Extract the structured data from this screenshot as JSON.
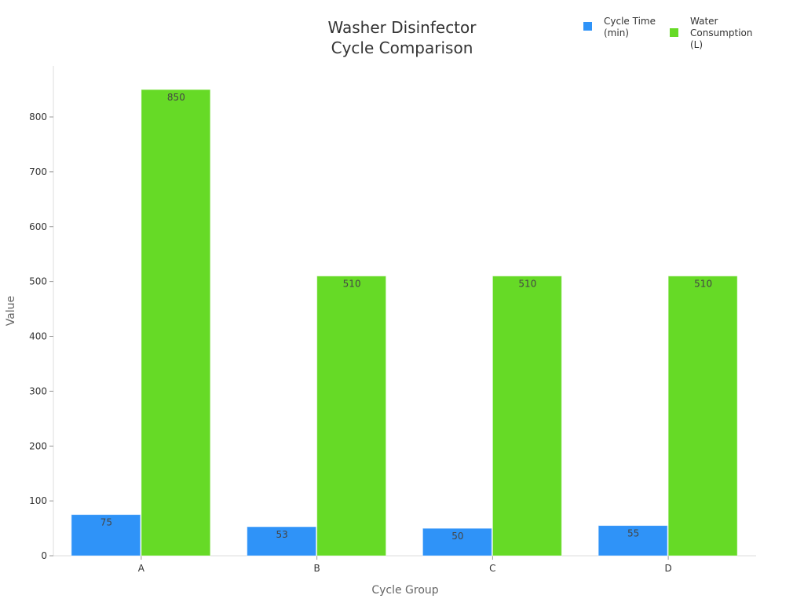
{
  "chart_data": {
    "type": "bar",
    "title_lines": [
      "Washer Disinfector",
      "Cycle Comparison"
    ],
    "xlabel": "Cycle Group",
    "ylabel": "Value",
    "categories": [
      "A",
      "B",
      "C",
      "D"
    ],
    "series": [
      {
        "name_lines": [
          "Cycle Time",
          "(min)"
        ],
        "color": "#2F93F8",
        "values": [
          75,
          53,
          50,
          55
        ]
      },
      {
        "name_lines": [
          "Water",
          "Consumption",
          "(L)"
        ],
        "color": "#66DA26",
        "values": [
          850,
          510,
          510,
          510
        ]
      }
    ],
    "ylim": [
      0,
      895
    ],
    "yticks": [
      0,
      100,
      200,
      300,
      400,
      500,
      600,
      700,
      800
    ],
    "grid": false,
    "legend_position": "top-right"
  }
}
